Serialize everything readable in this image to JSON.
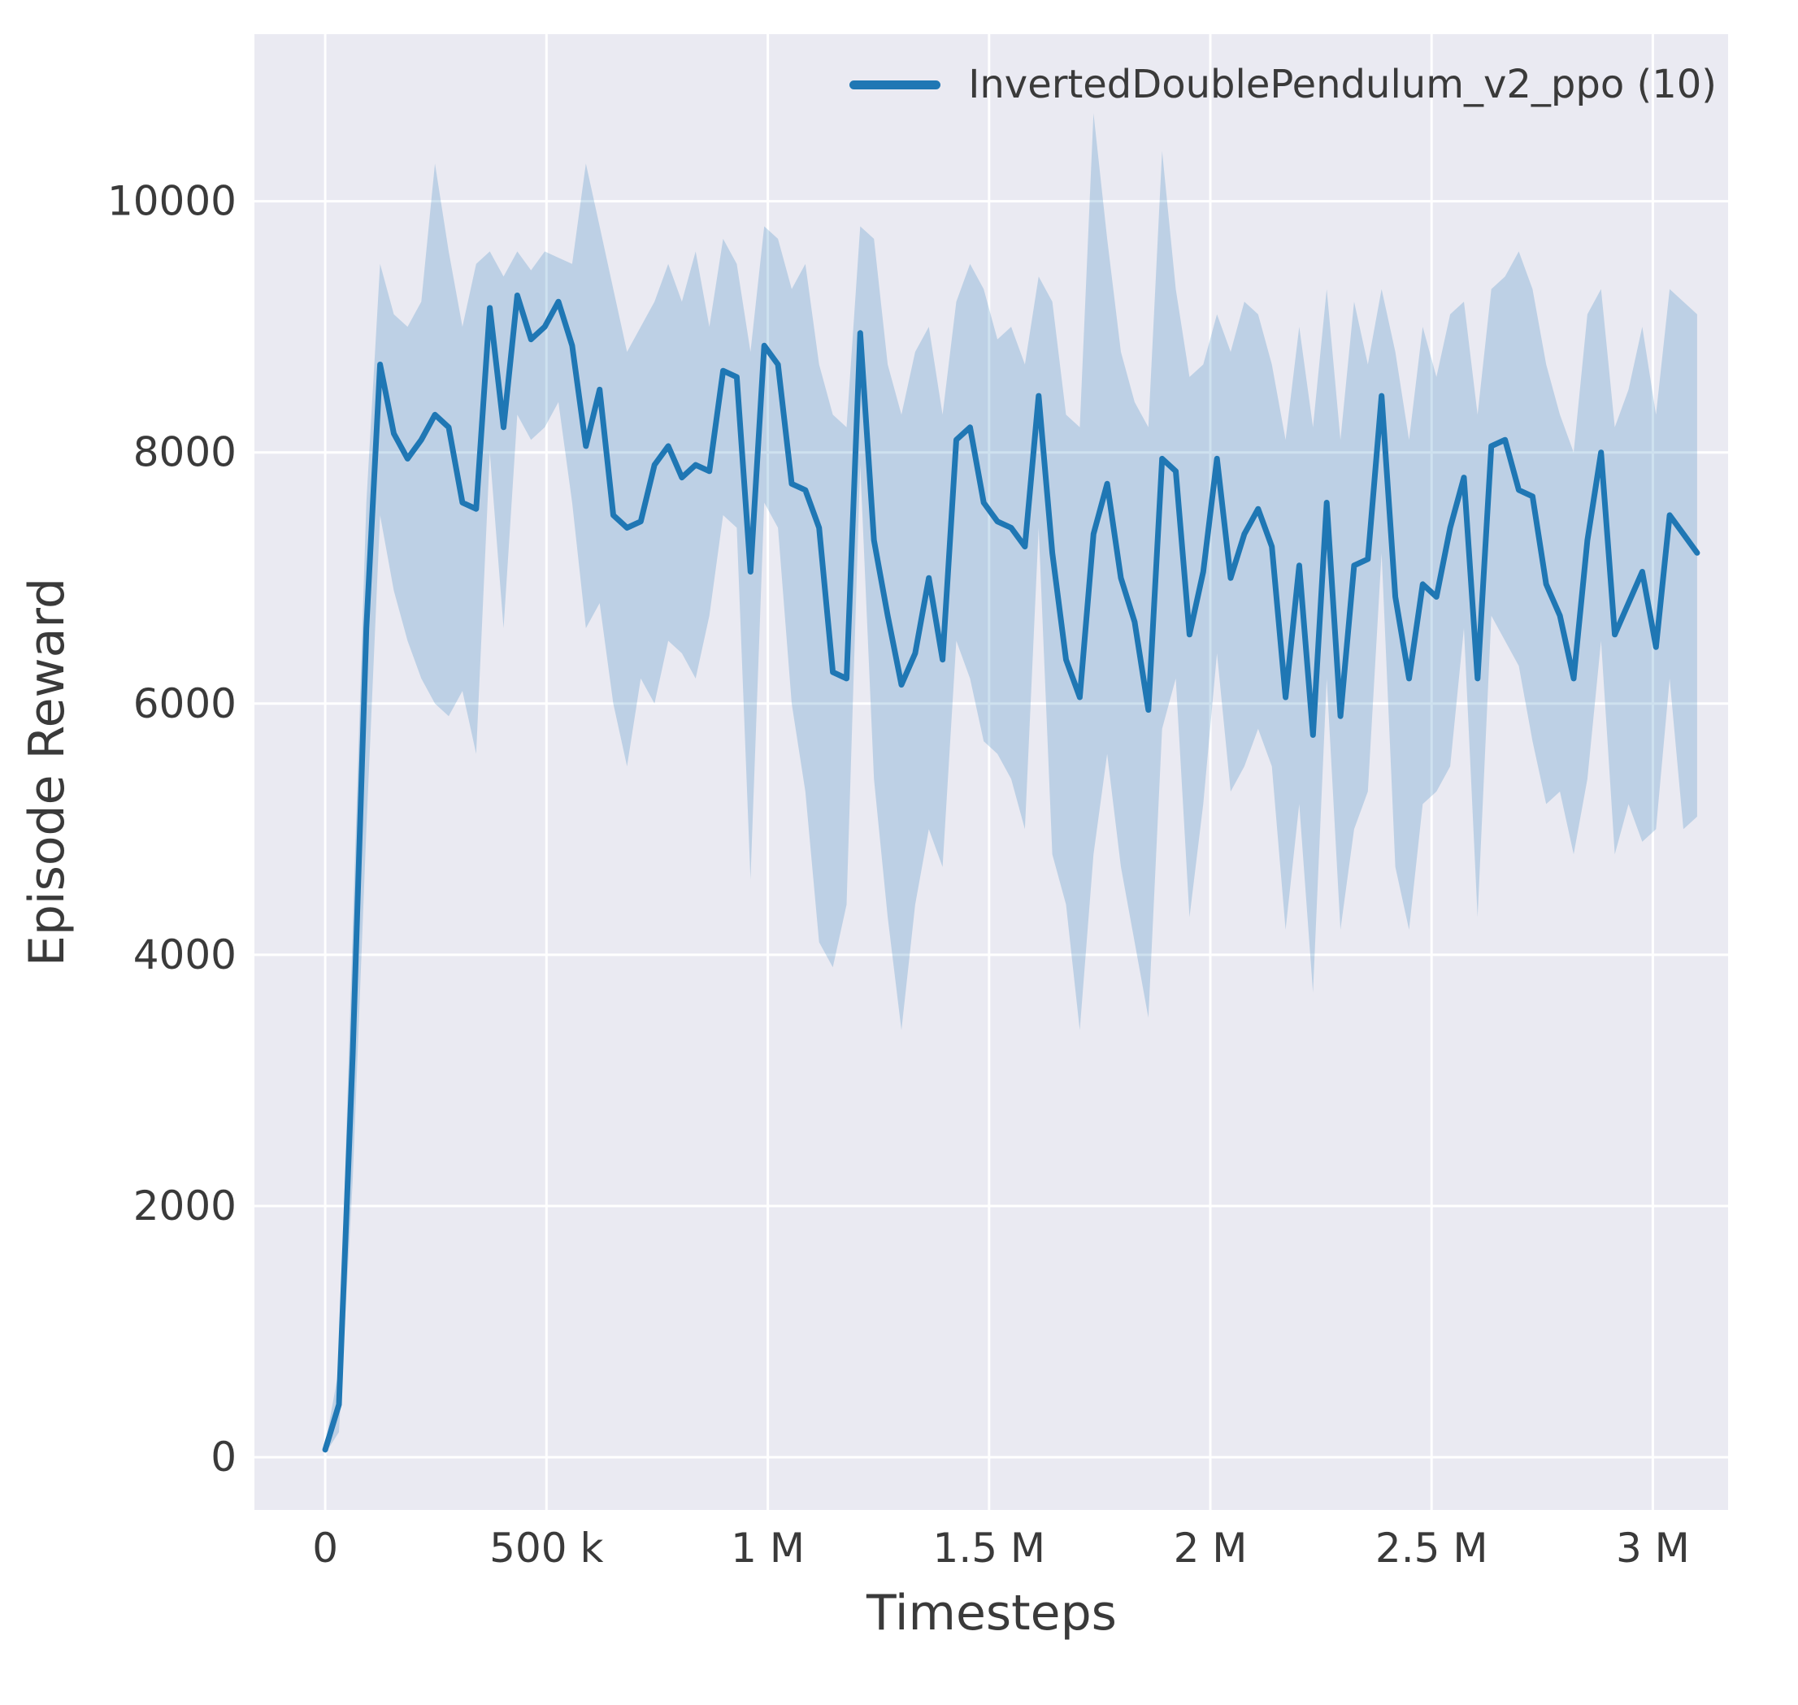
{
  "chart_data": {
    "type": "line",
    "title": "",
    "xlabel": "Timesteps",
    "ylabel": "Episode Reward",
    "grid": true,
    "legend_position": "upper right",
    "xlim": [
      -160000,
      3170000
    ],
    "ylim": [
      -420,
      11330
    ],
    "xticks": {
      "values": [
        0,
        500000,
        1000000,
        1500000,
        2000000,
        2500000,
        3000000
      ],
      "labels": [
        "0",
        "500 k",
        "1 M",
        "1.5 M",
        "2 M",
        "2.5 M",
        "3 M"
      ]
    },
    "yticks": {
      "values": [
        0,
        2000,
        4000,
        6000,
        8000,
        10000
      ],
      "labels": [
        "0",
        "2000",
        "4000",
        "6000",
        "8000",
        "10000"
      ]
    },
    "colors": {
      "line": "#1f77b4",
      "band": "#1f77b4",
      "band_opacity": 0.22,
      "plot_bg": "#eaeaf2",
      "grid": "#ffffff",
      "text": "#3a3a3a"
    },
    "x": [
      0,
      31000,
      62000,
      93000,
      124000,
      155000,
      186000,
      217000,
      248000,
      279000,
      310000,
      341000,
      372000,
      403000,
      434000,
      465000,
      496000,
      527000,
      558000,
      589000,
      620000,
      651000,
      682000,
      713000,
      744000,
      775000,
      806000,
      837000,
      868000,
      899000,
      930000,
      961000,
      992000,
      1023000,
      1054000,
      1085000,
      1116000,
      1147000,
      1178000,
      1209000,
      1240000,
      1271000,
      1302000,
      1333000,
      1364000,
      1395000,
      1426000,
      1457000,
      1488000,
      1519000,
      1550000,
      1581000,
      1612000,
      1643000,
      1674000,
      1705000,
      1736000,
      1767000,
      1798000,
      1829000,
      1860000,
      1891000,
      1922000,
      1953000,
      1984000,
      2015000,
      2046000,
      2077000,
      2108000,
      2139000,
      2170000,
      2201000,
      2232000,
      2263000,
      2294000,
      2325000,
      2356000,
      2387000,
      2418000,
      2449000,
      2480000,
      2511000,
      2542000,
      2573000,
      2604000,
      2635000,
      2666000,
      2697000,
      2728000,
      2759000,
      2790000,
      2821000,
      2852000,
      2883000,
      2914000,
      2945000,
      2976000,
      3007000,
      3038000,
      3069000,
      3100000
    ],
    "series": [
      {
        "name": "InvertedDoublePendulum_v2_ppo (10)",
        "mean": [
          60,
          420,
          3200,
          6600,
          8700,
          8150,
          7950,
          8100,
          8300,
          8200,
          7600,
          7550,
          9150,
          8200,
          9250,
          8900,
          9000,
          9200,
          8850,
          8050,
          8500,
          7500,
          7400,
          7450,
          7900,
          8050,
          7800,
          7900,
          7850,
          8650,
          8600,
          7050,
          8850,
          8700,
          7750,
          7700,
          7400,
          6250,
          6200,
          8950,
          7300,
          6700,
          6150,
          6400,
          7000,
          6350,
          8100,
          8200,
          7600,
          7450,
          7400,
          7250,
          8450,
          7200,
          6350,
          6050,
          7350,
          7750,
          7000,
          6650,
          5950,
          7950,
          7850,
          6550,
          7050,
          7950,
          7000,
          7350,
          7550,
          7250,
          6050,
          7100,
          5750,
          7600,
          5900,
          7100,
          7150,
          8450,
          6850,
          6200,
          6950,
          6850,
          7400,
          7800,
          6200,
          8050,
          8100,
          7700,
          7650,
          6950,
          6700,
          6200,
          7300,
          8000,
          6550,
          6800,
          7050,
          6450,
          7500,
          7350,
          7200
        ],
        "upper": [
          100,
          700,
          4200,
          7600,
          9500,
          9100,
          9000,
          9200,
          10300,
          9600,
          9000,
          9500,
          9600,
          9400,
          9600,
          9450,
          9600,
          9550,
          9500,
          10300,
          9800,
          9300,
          8800,
          9000,
          9200,
          9500,
          9200,
          9600,
          9000,
          9700,
          9500,
          8800,
          9800,
          9700,
          9300,
          9500,
          8700,
          8300,
          8200,
          9800,
          9700,
          8700,
          8300,
          8800,
          9000,
          8300,
          9200,
          9500,
          9300,
          8900,
          9000,
          8700,
          9400,
          9200,
          8300,
          8200,
          10700,
          9700,
          8800,
          8400,
          8200,
          10400,
          9300,
          8600,
          8700,
          9100,
          8800,
          9200,
          9100,
          8700,
          8100,
          9000,
          8200,
          9300,
          8100,
          9200,
          8700,
          9300,
          8800,
          8100,
          9000,
          8600,
          9100,
          9200,
          8300,
          9300,
          9400,
          9600,
          9300,
          8700,
          8300,
          8000,
          9100,
          9300,
          8200,
          8500,
          9000,
          8300,
          9300,
          9200,
          9100
        ],
        "lower": [
          30,
          200,
          2200,
          5000,
          7500,
          6900,
          6500,
          6200,
          6000,
          5900,
          6100,
          5600,
          8000,
          6600,
          8300,
          8100,
          8200,
          8400,
          7600,
          6600,
          6800,
          6000,
          5500,
          6200,
          6000,
          6500,
          6400,
          6200,
          6700,
          7500,
          7400,
          4600,
          7600,
          7400,
          6000,
          5300,
          4100,
          3900,
          4400,
          7900,
          5400,
          4300,
          3400,
          4400,
          5000,
          4700,
          6500,
          6200,
          5700,
          5600,
          5400,
          5000,
          7400,
          4800,
          4400,
          3400,
          4800,
          5600,
          4700,
          4100,
          3500,
          5800,
          6200,
          4300,
          5200,
          6400,
          5300,
          5500,
          5800,
          5500,
          4200,
          5200,
          3700,
          6200,
          4200,
          5000,
          5300,
          7200,
          4700,
          4200,
          5200,
          5300,
          5500,
          6600,
          4300,
          6700,
          6500,
          6300,
          5700,
          5200,
          5300,
          4800,
          5400,
          6500,
          4800,
          5200,
          4900,
          5000,
          6200,
          5000,
          5100
        ]
      }
    ]
  }
}
